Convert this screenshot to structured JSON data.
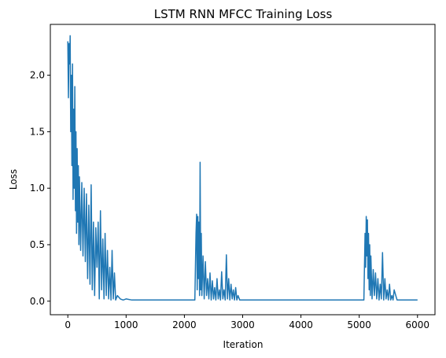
{
  "chart_data": {
    "type": "line",
    "title": "LSTM RNN MFCC Training Loss",
    "xlabel": "Iteration",
    "ylabel": "Loss",
    "xlim": [
      -300,
      6300
    ],
    "ylim": [
      -0.12,
      2.45
    ],
    "xticks": [
      0,
      1000,
      2000,
      3000,
      4000,
      5000,
      6000
    ],
    "yticks": [
      0.0,
      0.5,
      1.0,
      1.5,
      2.0
    ],
    "xtick_labels": [
      "0",
      "1000",
      "2000",
      "3000",
      "4000",
      "5000",
      "6000"
    ],
    "ytick_labels": [
      "0.0",
      "0.5",
      "1.0",
      "1.5",
      "2.0"
    ],
    "grid": false,
    "series": [
      {
        "color": "#1f77b4",
        "x": [
          0,
          10,
          20,
          30,
          40,
          50,
          60,
          70,
          80,
          90,
          100,
          110,
          120,
          130,
          140,
          150,
          160,
          170,
          180,
          190,
          200,
          220,
          240,
          260,
          280,
          300,
          320,
          340,
          360,
          380,
          400,
          420,
          440,
          460,
          480,
          500,
          520,
          540,
          560,
          580,
          600,
          620,
          640,
          660,
          680,
          700,
          720,
          740,
          760,
          780,
          800,
          820,
          850,
          900,
          950,
          1000,
          1100,
          1200,
          1300,
          1400,
          1500,
          1600,
          1700,
          1800,
          1900,
          2000,
          2100,
          2180,
          2200,
          2210,
          2220,
          2230,
          2240,
          2250,
          2260,
          2270,
          2280,
          2290,
          2300,
          2320,
          2340,
          2360,
          2380,
          2400,
          2420,
          2440,
          2460,
          2480,
          2500,
          2520,
          2540,
          2560,
          2580,
          2600,
          2620,
          2640,
          2660,
          2680,
          2700,
          2720,
          2740,
          2760,
          2780,
          2800,
          2820,
          2840,
          2860,
          2880,
          2900,
          2920,
          2950,
          3000,
          3200,
          3500,
          3800,
          4100,
          4400,
          4700,
          5000,
          5080,
          5100,
          5110,
          5120,
          5130,
          5140,
          5150,
          5160,
          5170,
          5180,
          5190,
          5200,
          5220,
          5240,
          5260,
          5280,
          5300,
          5320,
          5340,
          5360,
          5380,
          5400,
          5420,
          5440,
          5460,
          5480,
          5500,
          5520,
          5540,
          5560,
          5580,
          5600,
          5650,
          5700,
          5800,
          5900,
          6000
        ],
        "y": [
          2.3,
          1.8,
          2.28,
          2.1,
          2.35,
          1.5,
          2.0,
          1.2,
          2.1,
          0.9,
          1.7,
          1.0,
          1.9,
          0.8,
          1.5,
          0.6,
          1.35,
          0.7,
          1.2,
          0.5,
          1.1,
          0.45,
          1.05,
          0.4,
          1.0,
          0.35,
          0.95,
          0.2,
          0.85,
          0.15,
          1.03,
          0.1,
          0.7,
          0.05,
          0.65,
          0.3,
          0.7,
          0.02,
          0.8,
          0.1,
          0.55,
          0.02,
          0.6,
          0.05,
          0.45,
          0.02,
          0.3,
          0.01,
          0.45,
          0.02,
          0.25,
          0.01,
          0.05,
          0.02,
          0.01,
          0.02,
          0.01,
          0.01,
          0.01,
          0.01,
          0.01,
          0.01,
          0.01,
          0.01,
          0.01,
          0.01,
          0.01,
          0.01,
          0.6,
          0.77,
          0.1,
          0.75,
          0.2,
          0.7,
          0.05,
          1.23,
          0.1,
          0.6,
          0.05,
          0.4,
          0.02,
          0.35,
          0.05,
          0.2,
          0.02,
          0.25,
          0.01,
          0.18,
          0.02,
          0.12,
          0.01,
          0.2,
          0.02,
          0.1,
          0.01,
          0.26,
          0.02,
          0.1,
          0.01,
          0.41,
          0.02,
          0.2,
          0.01,
          0.15,
          0.02,
          0.1,
          0.01,
          0.12,
          0.01,
          0.05,
          0.01,
          0.01,
          0.01,
          0.01,
          0.01,
          0.01,
          0.01,
          0.01,
          0.01,
          0.01,
          0.6,
          0.3,
          0.75,
          0.4,
          0.72,
          0.2,
          0.6,
          0.1,
          0.5,
          0.05,
          0.4,
          0.02,
          0.28,
          0.05,
          0.25,
          0.02,
          0.2,
          0.01,
          0.15,
          0.02,
          0.43,
          0.01,
          0.2,
          0.02,
          0.1,
          0.01,
          0.15,
          0.01,
          0.05,
          0.01,
          0.1,
          0.01,
          0.01,
          0.01,
          0.01,
          0.01
        ]
      }
    ]
  }
}
